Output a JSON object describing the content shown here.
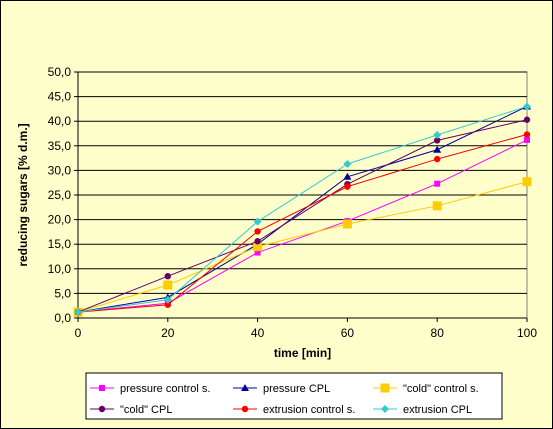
{
  "chart_data": {
    "type": "line",
    "xlabel": "time [min]",
    "ylabel": "reducing sugars [% d.m.]",
    "x": [
      0,
      20,
      40,
      60,
      80,
      100
    ],
    "xlim": [
      0,
      100
    ],
    "ylim": [
      0,
      50
    ],
    "x_ticks": [
      "0",
      "20",
      "40",
      "60",
      "80",
      "100"
    ],
    "y_ticks": [
      "0,0",
      "5,0",
      "10,0",
      "15,0",
      "20,0",
      "25,0",
      "30,0",
      "35,0",
      "40,0",
      "45,0",
      "50,0"
    ],
    "grid": "horizontal",
    "legend_position": "bottom",
    "series": [
      {
        "name": "pressure control s.",
        "color": "#ff00ff",
        "marker": "square",
        "values": [
          1.2,
          3.0,
          13.3,
          19.7,
          27.3,
          36.2
        ]
      },
      {
        "name": "pressure CPL",
        "color": "#000099",
        "marker": "triangle",
        "values": [
          1.2,
          4.2,
          15.0,
          28.7,
          34.2,
          43.0
        ]
      },
      {
        "name": "\"cold\" control s.",
        "color": "#ffcc00",
        "marker": "square",
        "values": [
          1.2,
          6.7,
          14.5,
          19.1,
          22.8,
          27.7
        ]
      },
      {
        "name": "\"cold\" CPL",
        "color": "#660066",
        "marker": "circle",
        "values": [
          1.2,
          8.5,
          15.6,
          27.2,
          36.1,
          40.3
        ]
      },
      {
        "name": "extrusion control s.",
        "color": "#ff0000",
        "marker": "circle",
        "values": [
          1.2,
          2.7,
          17.6,
          26.7,
          32.3,
          37.3
        ]
      },
      {
        "name": "extrusion CPL",
        "color": "#33cccc",
        "marker": "diamond",
        "values": [
          1.2,
          3.7,
          19.6,
          31.3,
          37.2,
          43.0
        ]
      }
    ]
  }
}
